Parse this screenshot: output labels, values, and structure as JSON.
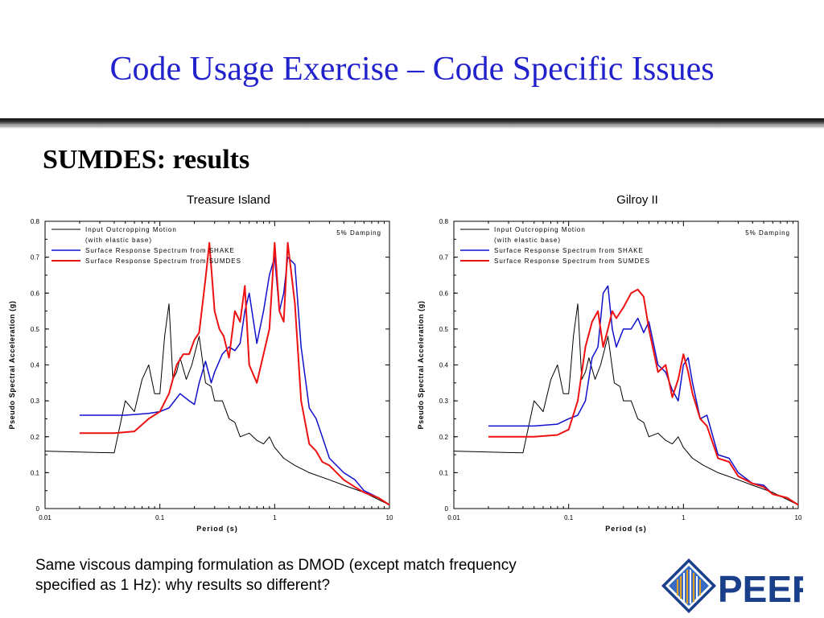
{
  "slide": {
    "title": "Code Usage Exercise – Code Specific Issues",
    "subtitle": "SUMDES: results",
    "caption": "Same viscous damping formulation as DMOD (except match frequency specified as 1 Hz): why results so different?",
    "logo_text": "PEER",
    "title_color": "#2222cc"
  },
  "chart_data": [
    {
      "type": "line",
      "title": "Treasure Island",
      "xlabel": "Period (s)",
      "ylabel": "Pseudo Spectral Acceleration (g)",
      "xscale": "log",
      "xlim": [
        0.01,
        10
      ],
      "ylim": [
        0,
        0.8
      ],
      "xticklabels": [
        "0.01",
        "0.1",
        "1",
        "10"
      ],
      "yticklabels": [
        "0",
        "0.1",
        "0.2",
        "0.3",
        "0.4",
        "0.5",
        "0.6",
        "0.7",
        "0.8"
      ],
      "annotation": "5% Damping",
      "legend": [
        "Input Outcropping Motion",
        "(with elastic base)",
        "Surface Response Spectrum from SHAKE",
        "Surface Response Spectrum from SUMDES"
      ],
      "legend_position": "top-left",
      "series": [
        {
          "name": "Input Outcropping Motion (with elastic base)",
          "color": "#000000",
          "x": [
            0.01,
            0.04,
            0.05,
            0.06,
            0.07,
            0.08,
            0.09,
            0.1,
            0.11,
            0.12,
            0.13,
            0.14,
            0.15,
            0.17,
            0.19,
            0.22,
            0.25,
            0.28,
            0.3,
            0.35,
            0.4,
            0.45,
            0.5,
            0.6,
            0.7,
            0.8,
            0.9,
            1.0,
            1.2,
            1.5,
            2.0,
            3.0,
            4.0,
            6.0,
            10.0
          ],
          "y": [
            0.16,
            0.155,
            0.3,
            0.27,
            0.36,
            0.4,
            0.32,
            0.32,
            0.48,
            0.57,
            0.36,
            0.38,
            0.42,
            0.36,
            0.4,
            0.48,
            0.35,
            0.34,
            0.3,
            0.3,
            0.25,
            0.24,
            0.2,
            0.21,
            0.19,
            0.18,
            0.2,
            0.17,
            0.14,
            0.12,
            0.1,
            0.08,
            0.065,
            0.045,
            0.01
          ]
        },
        {
          "name": "Surface Response Spectrum from SHAKE",
          "color": "#1010cc",
          "x": [
            0.02,
            0.05,
            0.08,
            0.1,
            0.12,
            0.15,
            0.18,
            0.2,
            0.22,
            0.25,
            0.28,
            0.3,
            0.35,
            0.4,
            0.45,
            0.5,
            0.55,
            0.6,
            0.7,
            0.8,
            0.9,
            1.0,
            1.1,
            1.2,
            1.3,
            1.5,
            1.7,
            2.0,
            2.3,
            2.6,
            3.0,
            4.0,
            5.0,
            6.0,
            8.0,
            10.0
          ],
          "y": [
            0.26,
            0.26,
            0.265,
            0.27,
            0.28,
            0.32,
            0.3,
            0.29,
            0.35,
            0.41,
            0.35,
            0.38,
            0.43,
            0.45,
            0.44,
            0.46,
            0.55,
            0.6,
            0.46,
            0.55,
            0.65,
            0.7,
            0.55,
            0.6,
            0.7,
            0.68,
            0.45,
            0.28,
            0.25,
            0.2,
            0.14,
            0.1,
            0.08,
            0.05,
            0.03,
            0.01
          ]
        },
        {
          "name": "Surface Response Spectrum from SUMDES",
          "color": "#ee1111",
          "x": [
            0.02,
            0.04,
            0.06,
            0.08,
            0.1,
            0.12,
            0.14,
            0.16,
            0.18,
            0.2,
            0.22,
            0.25,
            0.27,
            0.3,
            0.33,
            0.36,
            0.4,
            0.45,
            0.5,
            0.55,
            0.6,
            0.7,
            0.8,
            0.9,
            1.0,
            1.1,
            1.2,
            1.3,
            1.5,
            1.7,
            2.0,
            2.3,
            2.6,
            3.0,
            4.0,
            5.0,
            6.0,
            8.0,
            10.0
          ],
          "y": [
            0.21,
            0.21,
            0.215,
            0.25,
            0.27,
            0.32,
            0.4,
            0.43,
            0.43,
            0.47,
            0.49,
            0.64,
            0.74,
            0.55,
            0.5,
            0.48,
            0.42,
            0.55,
            0.52,
            0.62,
            0.4,
            0.35,
            0.43,
            0.5,
            0.74,
            0.55,
            0.52,
            0.74,
            0.57,
            0.3,
            0.18,
            0.16,
            0.13,
            0.12,
            0.08,
            0.06,
            0.045,
            0.03,
            0.01
          ]
        }
      ]
    },
    {
      "type": "line",
      "title": "Gilroy II",
      "xlabel": "Period (s)",
      "ylabel": "Pseudo Spectral Acceleration (g)",
      "xscale": "log",
      "xlim": [
        0.01,
        10
      ],
      "ylim": [
        0,
        0.8
      ],
      "xticklabels": [
        "0.01",
        "0.1",
        "1",
        "10"
      ],
      "yticklabels": [
        "0",
        "0.1",
        "0.2",
        "0.3",
        "0.4",
        "0.5",
        "0.6",
        "0.7",
        "0.8"
      ],
      "annotation": "5% Damping",
      "legend": [
        "Input Outcropping Motion",
        "(with elastic base)",
        "Surface Response Spectrum from SHAKE",
        "Surface Response Spectrum from SUMDES"
      ],
      "legend_position": "top-left",
      "series": [
        {
          "name": "Input Outcropping Motion (with elastic base)",
          "color": "#000000",
          "x": [
            0.01,
            0.04,
            0.05,
            0.06,
            0.07,
            0.08,
            0.09,
            0.1,
            0.11,
            0.12,
            0.13,
            0.14,
            0.15,
            0.17,
            0.19,
            0.22,
            0.25,
            0.28,
            0.3,
            0.35,
            0.4,
            0.45,
            0.5,
            0.6,
            0.7,
            0.8,
            0.9,
            1.0,
            1.2,
            1.5,
            2.0,
            3.0,
            4.0,
            6.0,
            10.0
          ],
          "y": [
            0.16,
            0.155,
            0.3,
            0.27,
            0.36,
            0.4,
            0.32,
            0.32,
            0.48,
            0.57,
            0.36,
            0.38,
            0.42,
            0.36,
            0.4,
            0.48,
            0.35,
            0.34,
            0.3,
            0.3,
            0.25,
            0.24,
            0.2,
            0.21,
            0.19,
            0.18,
            0.2,
            0.17,
            0.14,
            0.12,
            0.1,
            0.08,
            0.065,
            0.045,
            0.01
          ]
        },
        {
          "name": "Surface Response Spectrum from SHAKE",
          "color": "#1010cc",
          "x": [
            0.02,
            0.05,
            0.08,
            0.1,
            0.12,
            0.14,
            0.16,
            0.18,
            0.2,
            0.22,
            0.24,
            0.26,
            0.3,
            0.35,
            0.4,
            0.45,
            0.5,
            0.6,
            0.7,
            0.8,
            0.9,
            1.0,
            1.1,
            1.2,
            1.4,
            1.6,
            2.0,
            2.5,
            3.0,
            4.0,
            5.0,
            6.0,
            8.0,
            10.0
          ],
          "y": [
            0.23,
            0.23,
            0.235,
            0.25,
            0.26,
            0.3,
            0.42,
            0.45,
            0.6,
            0.62,
            0.5,
            0.45,
            0.5,
            0.5,
            0.53,
            0.49,
            0.52,
            0.4,
            0.38,
            0.33,
            0.3,
            0.4,
            0.42,
            0.35,
            0.25,
            0.26,
            0.15,
            0.14,
            0.1,
            0.07,
            0.065,
            0.04,
            0.03,
            0.01
          ]
        },
        {
          "name": "Surface Response Spectrum from SUMDES",
          "color": "#ee1111",
          "x": [
            0.02,
            0.05,
            0.08,
            0.1,
            0.12,
            0.14,
            0.16,
            0.18,
            0.2,
            0.22,
            0.24,
            0.26,
            0.3,
            0.35,
            0.4,
            0.45,
            0.5,
            0.6,
            0.7,
            0.8,
            0.9,
            1.0,
            1.1,
            1.2,
            1.4,
            1.6,
            2.0,
            2.5,
            3.0,
            4.0,
            5.0,
            6.0,
            8.0,
            10.0
          ],
          "y": [
            0.2,
            0.2,
            0.205,
            0.22,
            0.3,
            0.45,
            0.52,
            0.55,
            0.45,
            0.5,
            0.55,
            0.53,
            0.56,
            0.6,
            0.61,
            0.59,
            0.5,
            0.38,
            0.4,
            0.31,
            0.36,
            0.43,
            0.38,
            0.32,
            0.25,
            0.23,
            0.14,
            0.13,
            0.09,
            0.07,
            0.06,
            0.04,
            0.03,
            0.01
          ]
        }
      ]
    }
  ]
}
